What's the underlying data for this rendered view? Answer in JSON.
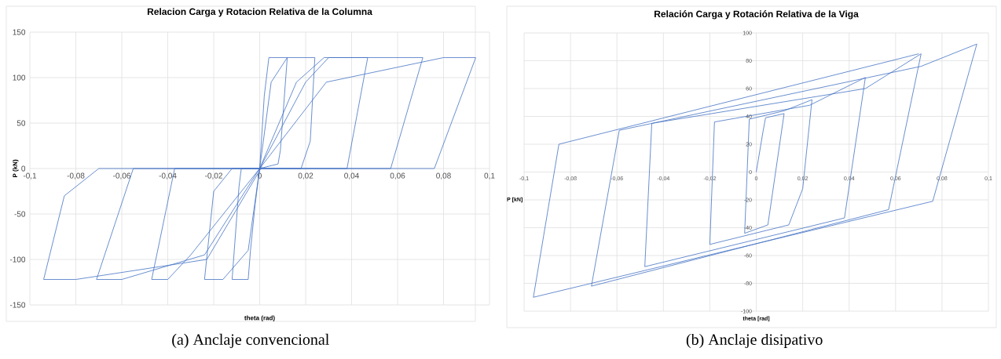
{
  "chart_data": [
    {
      "type": "line",
      "title": "Relacion Carga y Rotacion Relativa de la Columna",
      "xlabel": "theta (rad)",
      "ylabel": "P (kN)",
      "annotations": [
        "(a) Anclaje convencional"
      ],
      "grid": true,
      "xlim": [
        -0.1,
        0.1
      ],
      "ylim": [
        -150,
        150
      ],
      "xticks": [
        {
          "value": -0.1,
          "label": "-0,1"
        },
        {
          "value": -0.08,
          "label": "-0,08"
        },
        {
          "value": -0.06,
          "label": "-0,06"
        },
        {
          "value": -0.04,
          "label": "-0,04"
        },
        {
          "value": -0.02,
          "label": "-0,02"
        },
        0,
        {
          "value": 0.02,
          "label": "0,02"
        },
        {
          "value": 0.04,
          "label": "0,04"
        },
        {
          "value": 0.06,
          "label": "0,06"
        },
        {
          "value": 0.08,
          "label": "0,08"
        },
        {
          "value": 0.1,
          "label": "0,1"
        }
      ],
      "yticks": [
        -150,
        -100,
        -50,
        0,
        50,
        100,
        150
      ],
      "series": [
        {
          "color": "#4472c4",
          "x": [
            0,
            0.002,
            0.004,
            0.012,
            0.009,
            0.008,
            0,
            -0.002,
            -0.004,
            -0.005,
            -0.012,
            -0.009,
            -0.008,
            0,
            0.005,
            0.012,
            0.024,
            0.022,
            0.018,
            -0.012,
            -0.02,
            -0.024,
            -0.016,
            -0.005,
            0,
            0.016,
            0.028,
            0.047,
            0.038,
            -0.037,
            -0.047,
            -0.04,
            -0.03,
            0,
            0.02,
            0.03,
            0.071,
            0.057,
            -0.055,
            -0.071,
            -0.06,
            -0.024,
            0,
            0.029,
            0.08,
            0.094,
            0.076,
            -0.07,
            -0.085,
            -0.094,
            -0.08,
            -0.023,
            0.001
          ],
          "values": [
            0,
            80,
            122,
            122,
            20,
            5,
            0,
            -40,
            -90,
            -122,
            -122,
            -20,
            0,
            0,
            95,
            122,
            122,
            30,
            0,
            0,
            -25,
            -122,
            -122,
            -90,
            0,
            95,
            122,
            122,
            0,
            0,
            -122,
            -122,
            -95,
            0,
            95,
            122,
            122,
            0,
            0,
            -122,
            -122,
            -95,
            0,
            95,
            122,
            122,
            0,
            0,
            -30,
            -122,
            -122,
            -100,
            2
          ]
        }
      ]
    },
    {
      "type": "line",
      "title": "Relación Carga y Rotación Relativa de la Viga",
      "xlabel": "theta [rad]",
      "ylabel": "P [kN]",
      "annotations": [
        "(b) Anclaje disipativo"
      ],
      "grid": true,
      "xlim": [
        -0.1,
        0.1
      ],
      "ylim": [
        -100,
        100
      ],
      "xticks": [
        {
          "value": -0.1,
          "label": "-0,1"
        },
        {
          "value": -0.08,
          "label": "-0,08"
        },
        {
          "value": -0.06,
          "label": "-0,06"
        },
        {
          "value": -0.04,
          "label": "-0,04"
        },
        {
          "value": -0.02,
          "label": "-0,02"
        },
        0,
        {
          "value": 0.02,
          "label": "0,02"
        },
        {
          "value": 0.04,
          "label": "0,04"
        },
        {
          "value": 0.06,
          "label": "0,06"
        },
        {
          "value": 0.08,
          "label": "0,08"
        },
        {
          "value": 0.1,
          "label": "0,1"
        }
      ],
      "yticks": [
        -100,
        -80,
        -60,
        -40,
        -20,
        0,
        20,
        40,
        60,
        80,
        100
      ],
      "series": [
        {
          "color": "#4472c4",
          "x": [
            0,
            0.003,
            0.004,
            0.012,
            0.005,
            -0.005,
            -0.003,
            0.012,
            0.024,
            0.02,
            0.014,
            -0.02,
            -0.018,
            0.023,
            0.047,
            0.038,
            -0.048,
            -0.045,
            0.047,
            0.071,
            0.057,
            -0.071,
            -0.059,
            0.071,
            0.095,
            0.076,
            -0.096,
            -0.085,
            0.07
          ],
          "values": [
            0,
            30,
            39,
            42,
            -38,
            -44,
            38,
            44,
            52,
            -12,
            -38,
            -52,
            36,
            48,
            68,
            -33,
            -68,
            35,
            60,
            85,
            -27,
            -82,
            30,
            76,
            92,
            -21,
            -90,
            20,
            85
          ]
        }
      ]
    }
  ]
}
